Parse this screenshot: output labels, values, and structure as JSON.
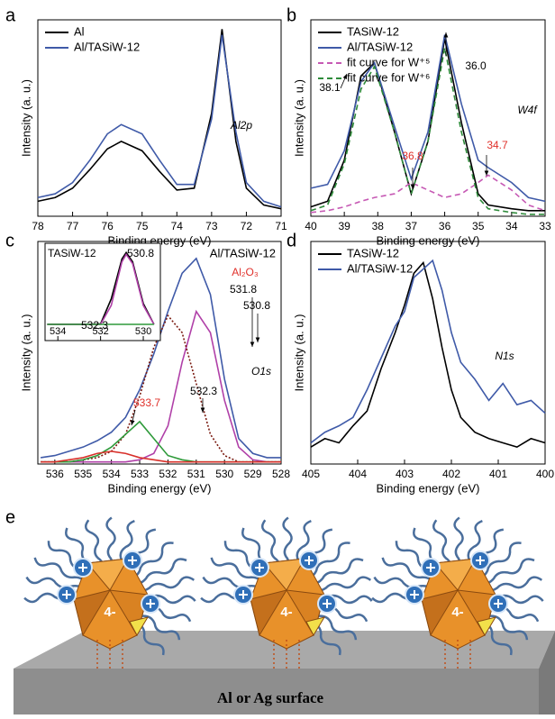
{
  "chart_data": [
    {
      "type": "line",
      "panel_label": "a",
      "xlabel": "Binding energy (eV)",
      "ylabel": "Intensity (a. u.)",
      "xlim": [
        78,
        71
      ],
      "xticks": [
        78,
        77,
        76,
        75,
        74,
        73,
        72,
        71
      ],
      "ylim": [
        0,
        105
      ],
      "legend": "top-left",
      "annotations": [
        "Al2p"
      ],
      "x": [
        78,
        77.5,
        77,
        76.5,
        76,
        75.6,
        75,
        74.5,
        74,
        73.5,
        73,
        72.7,
        72.3,
        72,
        71.5,
        71
      ],
      "series": [
        {
          "name": "Al",
          "color": "#000000",
          "values": [
            8,
            10,
            15,
            25,
            36,
            40,
            35,
            24,
            14,
            15,
            55,
            100,
            40,
            15,
            6,
            4
          ]
        },
        {
          "name": "Al/TASiW-12",
          "color": "#3f5aa8",
          "values": [
            10,
            12,
            18,
            30,
            44,
            49,
            44,
            30,
            17,
            17,
            52,
            97,
            45,
            18,
            8,
            5
          ]
        }
      ]
    },
    {
      "type": "line",
      "panel_label": "b",
      "xlabel": "Binding energy (eV)",
      "ylabel": "Intensity (a. u.)",
      "xlim": [
        40,
        33
      ],
      "xticks": [
        40,
        39,
        38,
        37,
        36,
        35,
        34,
        33
      ],
      "ylim": [
        0,
        105
      ],
      "legend": "top-left",
      "annotations": [
        "38.1",
        "36.0",
        "36.8",
        "34.7",
        "W4f"
      ],
      "x": [
        40,
        39.5,
        39,
        38.5,
        38.1,
        37.5,
        37,
        36.5,
        36,
        35.5,
        35,
        34.7,
        34,
        33.5,
        33
      ],
      "series": [
        {
          "name": "TASiW-12",
          "color": "#000000",
          "values": [
            5,
            8,
            30,
            75,
            82,
            45,
            12,
            40,
            95,
            50,
            12,
            6,
            4,
            3,
            3
          ]
        },
        {
          "name": "Al/TASiW-12",
          "color": "#3f5aa8",
          "values": [
            15,
            17,
            35,
            72,
            82,
            48,
            20,
            45,
            97,
            60,
            30,
            26,
            18,
            10,
            8
          ]
        },
        {
          "name": "fit curve for W⁺⁵",
          "color": "#c659b4",
          "dash": "dashed",
          "values": [
            2,
            3,
            5,
            8,
            10,
            12,
            18,
            14,
            10,
            12,
            18,
            22,
            14,
            6,
            3
          ]
        },
        {
          "name": "fit curve for W⁺⁶",
          "color": "#2e8b3a",
          "dash": "dashed",
          "values": [
            3,
            6,
            28,
            68,
            80,
            45,
            12,
            40,
            90,
            45,
            10,
            4,
            2,
            1,
            1
          ]
        }
      ]
    },
    {
      "type": "line",
      "panel_label": "c",
      "xlabel": "Binding energy (eV)",
      "ylabel": "Intensity (a. u.)",
      "xlim": [
        536.6,
        528
      ],
      "xticks": [
        536,
        535,
        534,
        533,
        532,
        531,
        530,
        529,
        528
      ],
      "ylim": [
        0,
        105
      ],
      "annotations": [
        "Al₂O₃",
        "531.8",
        "530.8",
        "532.3",
        "533.7",
        "O1s"
      ],
      "x": [
        536.5,
        536,
        535.5,
        535,
        534.5,
        534,
        533.5,
        533,
        532.5,
        532,
        531.5,
        531,
        530.5,
        530,
        529.5,
        529,
        528.5,
        528
      ],
      "series": [
        {
          "name": "Al/TASiW-12",
          "color": "#3f5aa8",
          "values": [
            3,
            4,
            6,
            8,
            11,
            15,
            22,
            35,
            52,
            72,
            90,
            97,
            80,
            40,
            12,
            5,
            3,
            3
          ]
        },
        {
          "color": "#b040a8",
          "values": [
            1,
            1,
            1,
            1,
            1,
            1,
            1,
            2,
            5,
            18,
            48,
            72,
            62,
            30,
            8,
            2,
            1,
            1
          ]
        },
        {
          "color": "#7a1a10",
          "dash": "dotted",
          "values": [
            1,
            1,
            1,
            2,
            3,
            6,
            14,
            32,
            55,
            70,
            62,
            38,
            14,
            4,
            1,
            1,
            1,
            1
          ]
        },
        {
          "color": "#2e9a3a",
          "values": [
            1,
            1,
            1,
            2,
            4,
            8,
            14,
            20,
            12,
            4,
            2,
            1,
            1,
            1,
            1,
            1,
            1,
            1
          ]
        },
        {
          "color": "#d8302a",
          "values": [
            1,
            1,
            2,
            3,
            5,
            6,
            5,
            3,
            2,
            1,
            1,
            1,
            1,
            1,
            1,
            1,
            1,
            1
          ]
        }
      ]
    },
    {
      "type": "line",
      "xlim": [
        534.6,
        529.2
      ],
      "xticks": [
        534,
        532,
        530
      ],
      "ylim": [
        0,
        105
      ],
      "annotations": [
        "530.8",
        "532.3"
      ],
      "x": [
        534.5,
        534,
        533.5,
        533,
        532.5,
        532,
        531.5,
        531,
        530.8,
        530.5,
        530,
        529.5
      ],
      "series": [
        {
          "name": "TASiW-12",
          "color": "#000000",
          "values": [
            3,
            3,
            4,
            6,
            10,
            18,
            45,
            88,
            95,
            85,
            40,
            10
          ]
        },
        {
          "color": "#b040a8",
          "values": [
            1,
            1,
            1,
            1,
            2,
            8,
            38,
            85,
            93,
            83,
            38,
            9
          ]
        },
        {
          "color": "#2e9a3a",
          "values": [
            1,
            2,
            4,
            7,
            10,
            8,
            4,
            2,
            1,
            1,
            1,
            1
          ]
        }
      ]
    },
    {
      "type": "line",
      "panel_label": "d",
      "xlabel": "Binding energy (eV)",
      "ylabel": "Intensity (a. u.)",
      "xlim": [
        405,
        400
      ],
      "xticks": [
        405,
        404,
        403,
        402,
        401,
        400
      ],
      "ylim": [
        0,
        105
      ],
      "legend": "top-left",
      "annotations": [
        "N1s"
      ],
      "x": [
        405,
        404.7,
        404.4,
        404.1,
        403.8,
        403.5,
        403.2,
        403,
        402.8,
        402.6,
        402.4,
        402.2,
        402,
        401.8,
        401.5,
        401.2,
        400.9,
        400.6,
        400.3,
        400
      ],
      "series": [
        {
          "name": "TASiW-12",
          "color": "#000000",
          "values": [
            8,
            12,
            10,
            18,
            25,
            45,
            62,
            75,
            90,
            95,
            78,
            55,
            35,
            22,
            15,
            12,
            10,
            8,
            12,
            10
          ]
        },
        {
          "name": "Al/TASiW-12",
          "color": "#3f5aa8",
          "values": [
            10,
            15,
            18,
            22,
            35,
            50,
            65,
            72,
            88,
            92,
            96,
            82,
            62,
            48,
            40,
            30,
            38,
            28,
            30,
            24
          ]
        }
      ]
    }
  ],
  "figure_e": {
    "label": "e",
    "surface_label": "Al or Ag surface",
    "charge": "4-"
  }
}
